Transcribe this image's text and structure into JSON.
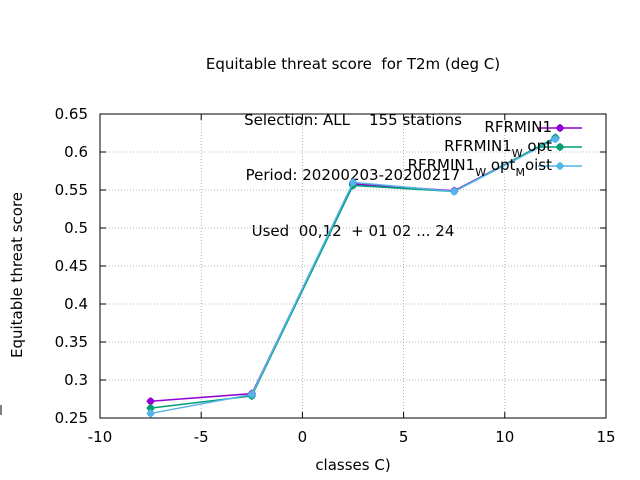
{
  "chart_data": {
    "type": "line",
    "title_lines": [
      "Equitable threat score  for T2m (deg C)",
      "Selection: ALL    155 stations",
      "Period: 20200203-20200217",
      "Used  00,12  + 01 02 ... 24"
    ],
    "xlabel": "classes C)",
    "ylabel": "Equitable threat score",
    "xlim": [
      -10,
      15
    ],
    "ylim": [
      0.25,
      0.65
    ],
    "xticks": [
      -10,
      -5,
      0,
      5,
      10,
      15
    ],
    "xtick_labels": [
      "-10",
      "-5",
      "0",
      "5",
      "10",
      "15"
    ],
    "yticks": [
      0.25,
      0.3,
      0.35,
      0.4,
      0.45,
      0.5,
      0.55,
      0.6,
      0.65
    ],
    "ytick_labels": [
      "0.25",
      "0.3",
      "0.35",
      "0.4",
      "0.45",
      "0.5",
      "0.55",
      "0.6",
      "0.65"
    ],
    "grid": true,
    "legend_position": "top-right",
    "series": [
      {
        "legend": [
          "RFRMIN1"
        ],
        "color": "#9400d3",
        "x": [
          -7.5,
          -2.5,
          2.5,
          7.5,
          12.5
        ],
        "y": [
          0.272,
          0.282,
          0.558,
          0.549,
          0.618
        ]
      },
      {
        "legend": [
          "RFRMIN1",
          "W",
          "opt"
        ],
        "color": "#009e73",
        "x": [
          -7.5,
          -2.5,
          2.5,
          7.5,
          12.5
        ],
        "y": [
          0.263,
          0.279,
          0.556,
          0.548,
          0.619
        ]
      },
      {
        "legend": [
          "RFRMIN1",
          "W",
          "opt",
          "M",
          "oist"
        ],
        "color": "#56b4e9",
        "x": [
          -7.5,
          -2.5,
          2.5,
          7.5,
          12.5
        ],
        "y": [
          0.256,
          0.281,
          0.56,
          0.548,
          0.617
        ]
      }
    ]
  }
}
